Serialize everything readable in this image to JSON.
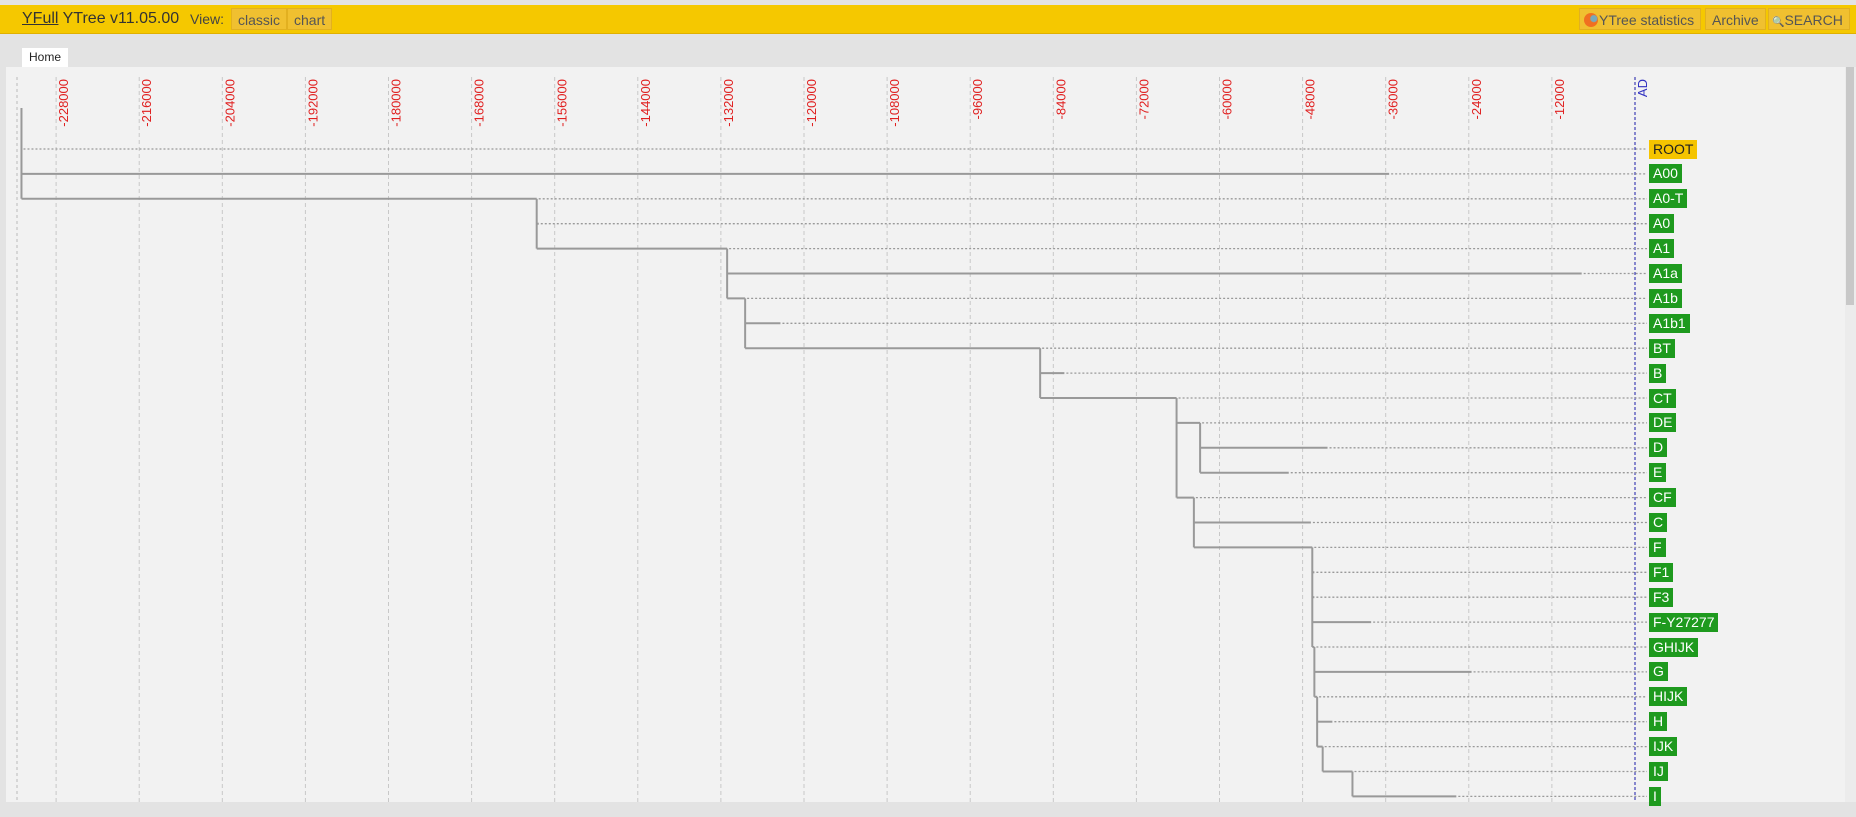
{
  "header": {
    "brand_link": "YFull",
    "brand_rest": " YTree v11.05.00",
    "view_label": "View:",
    "view_buttons": [
      "classic",
      "chart"
    ],
    "right_buttons": {
      "statistics": "YTree statistics",
      "archive": "Archive",
      "search": "SEARCH"
    },
    "icons": {
      "statistics": "pie-chart-icon",
      "search": "magnifier-icon"
    }
  },
  "tabs": [
    {
      "label": "Home"
    }
  ],
  "colors": {
    "header": "#f5c800",
    "node_badge": "#1e9a1e",
    "root_badge": "#f5c400",
    "tick_label": "#e02020",
    "ad_line": "#1a1aa8",
    "branch": "#999999"
  },
  "chart_data": {
    "type": "tree",
    "x_axis": {
      "ticks": [
        -228000,
        -216000,
        -204000,
        -192000,
        -180000,
        -168000,
        -156000,
        -144000,
        -132000,
        -120000,
        -108000,
        -96000,
        -84000,
        -72000,
        -60000,
        -48000,
        -36000,
        -24000,
        -12000
      ],
      "end_label": "AD",
      "units": "years"
    },
    "grid": true,
    "nodes": [
      {
        "name": "ROOT",
        "parent": null,
        "time": -233000
      },
      {
        "name": "A00",
        "parent": "ROOT",
        "time": -35500
      },
      {
        "name": "A0-T",
        "parent": "ROOT",
        "time": -158600
      },
      {
        "name": "A0",
        "parent": "A0-T",
        "time": -158300
      },
      {
        "name": "A1",
        "parent": "A0-T",
        "time": -131100
      },
      {
        "name": "A1a",
        "parent": "A1",
        "time": -7700
      },
      {
        "name": "A1b",
        "parent": "A1",
        "time": -128500
      },
      {
        "name": "A1b1",
        "parent": "A1b",
        "time": -123400
      },
      {
        "name": "BT",
        "parent": "A1b",
        "time": -85900
      },
      {
        "name": "B",
        "parent": "BT",
        "time": -82400
      },
      {
        "name": "CT",
        "parent": "BT",
        "time": -66200
      },
      {
        "name": "DE",
        "parent": "CT",
        "time": -62800
      },
      {
        "name": "D",
        "parent": "DE",
        "time": -44400
      },
      {
        "name": "E",
        "parent": "DE",
        "time": -50000
      },
      {
        "name": "CF",
        "parent": "CT",
        "time": -63700
      },
      {
        "name": "C",
        "parent": "CF",
        "time": -46800
      },
      {
        "name": "F",
        "parent": "CF",
        "time": -46600
      },
      {
        "name": "F1",
        "parent": "F",
        "time": -46300
      },
      {
        "name": "F3",
        "parent": "F",
        "time": -46300
      },
      {
        "name": "F-Y27277",
        "parent": "F",
        "time": -38100
      },
      {
        "name": "GHIJK",
        "parent": "F",
        "time": -46300
      },
      {
        "name": "G",
        "parent": "GHIJK",
        "time": -23600
      },
      {
        "name": "HIJK",
        "parent": "GHIJK",
        "time": -45900
      },
      {
        "name": "H",
        "parent": "HIJK",
        "time": -43700
      },
      {
        "name": "IJK",
        "parent": "HIJK",
        "time": -45100
      },
      {
        "name": "IJ",
        "parent": "IJK",
        "time": -40800
      },
      {
        "name": "I",
        "parent": "IJ",
        "time": -25800
      }
    ]
  }
}
